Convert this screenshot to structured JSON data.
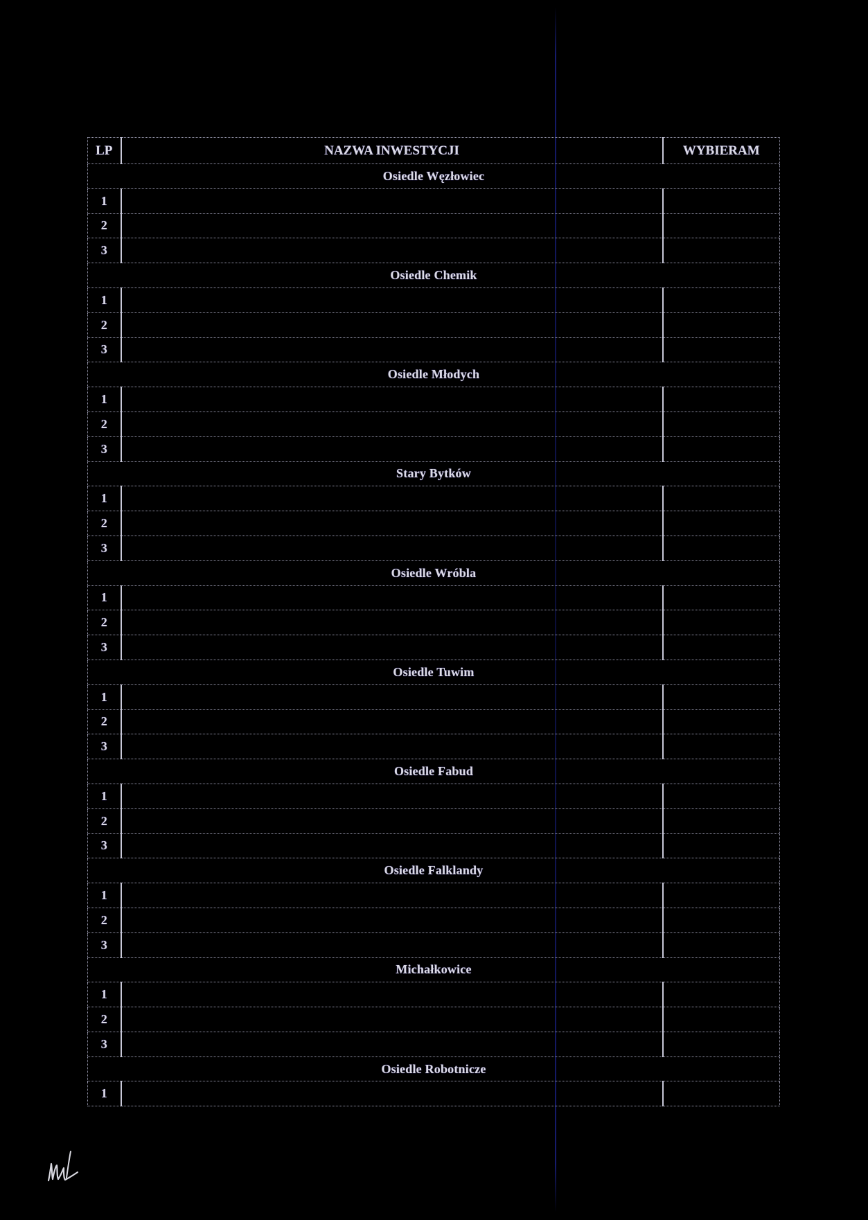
{
  "table": {
    "header": {
      "lp": "LP",
      "name": "NAZWA INWESTYCJI",
      "pick": "WYBIERAM"
    },
    "sections": [
      {
        "title": "Osiedle Węzłowiec",
        "rows": [
          "1",
          "2",
          "3"
        ]
      },
      {
        "title": "Osiedle Chemik",
        "rows": [
          "1",
          "2",
          "3"
        ]
      },
      {
        "title": "Osiedle Młodych",
        "rows": [
          "1",
          "2",
          "3"
        ]
      },
      {
        "title": "Stary Bytków",
        "rows": [
          "1",
          "2",
          "3"
        ]
      },
      {
        "title": "Osiedle Wróbla",
        "rows": [
          "1",
          "2",
          "3"
        ]
      },
      {
        "title": "Osiedle Tuwim",
        "rows": [
          "1",
          "2",
          "3"
        ]
      },
      {
        "title": "Osiedle Fabud",
        "rows": [
          "1",
          "2",
          "3"
        ]
      },
      {
        "title": "Osiedle Falklandy",
        "rows": [
          "1",
          "2",
          "3"
        ]
      },
      {
        "title": "Michałkowice",
        "rows": [
          "1",
          "2",
          "3"
        ]
      },
      {
        "title": "Osiedle Robotnicze",
        "rows": [
          "1"
        ]
      }
    ]
  },
  "signature": {
    "kind": "handwritten-initials"
  }
}
